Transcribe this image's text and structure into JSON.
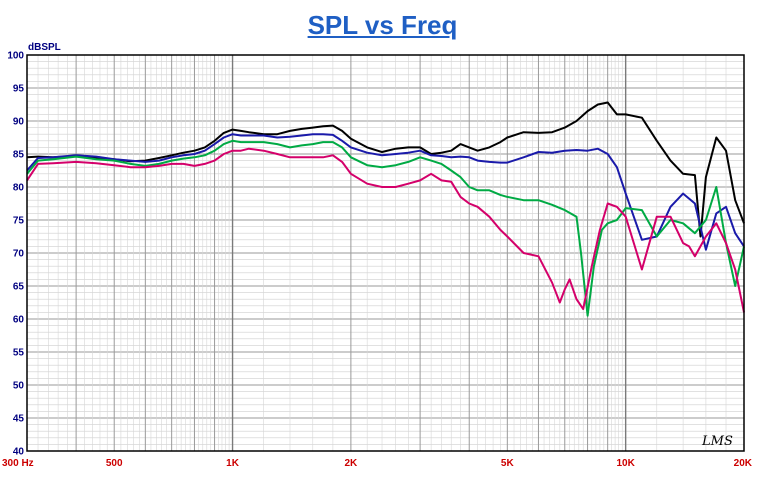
{
  "chart_data": {
    "type": "line",
    "title": "SPL vs Freq",
    "ylabel": "dBSPL",
    "xscale": "log",
    "xlim": [
      300,
      20000
    ],
    "ylim": [
      40,
      100
    ],
    "grid": true,
    "x_tick_labels": [
      {
        "value": 300,
        "label": "300  Hz"
      },
      {
        "value": 500,
        "label": "500"
      },
      {
        "value": 1000,
        "label": "1K"
      },
      {
        "value": 2000,
        "label": "2K"
      },
      {
        "value": 5000,
        "label": "5K"
      },
      {
        "value": 10000,
        "label": "10K"
      },
      {
        "value": 20000,
        "label": "20K"
      }
    ],
    "y_tick_labels": [
      "40",
      "45",
      "50",
      "55",
      "60",
      "65",
      "70",
      "75",
      "80",
      "85",
      "90",
      "95",
      "100"
    ],
    "watermark": "LMS",
    "colors": {
      "black": "#000000",
      "blue": "#1a1aaa",
      "green": "#00aa44",
      "magenta": "#d4006a",
      "title": "#1f5fc4"
    },
    "series": [
      {
        "color": "#000000",
        "x": [
          300,
          320,
          350,
          400,
          450,
          500,
          550,
          600,
          650,
          700,
          750,
          800,
          850,
          900,
          950,
          1000,
          1050,
          1100,
          1200,
          1300,
          1400,
          1500,
          1600,
          1700,
          1800,
          1900,
          2000,
          2200,
          2400,
          2600,
          2800,
          3000,
          3200,
          3400,
          3600,
          3800,
          4000,
          4200,
          4500,
          4800,
          5000,
          5500,
          6000,
          6500,
          7000,
          7500,
          8000,
          8500,
          9000,
          9500,
          10000,
          11000,
          12000,
          13000,
          14000,
          15000,
          15500,
          16000,
          17000,
          18000,
          19000,
          20000
        ],
        "y": [
          84.5,
          84.6,
          84.5,
          84.7,
          84.4,
          84.2,
          83.9,
          84.0,
          84.4,
          84.8,
          85.2,
          85.5,
          86.0,
          87.0,
          88.2,
          88.7,
          88.5,
          88.3,
          88.0,
          88.0,
          88.5,
          88.8,
          89.0,
          89.2,
          89.3,
          88.5,
          87.3,
          86.0,
          85.3,
          85.8,
          86.0,
          86.0,
          85.0,
          85.2,
          85.5,
          86.5,
          86.0,
          85.5,
          86.0,
          86.8,
          87.5,
          88.3,
          88.2,
          88.3,
          89.0,
          90.0,
          91.5,
          92.5,
          92.8,
          91.0,
          91.0,
          90.5,
          87.0,
          84.0,
          82.0,
          81.8,
          72.5,
          81.5,
          87.5,
          85.5,
          78.0,
          74.5
        ]
      },
      {
        "color": "#1a1aaa",
        "x": [
          300,
          320,
          350,
          400,
          450,
          500,
          550,
          600,
          650,
          700,
          750,
          800,
          850,
          900,
          950,
          1000,
          1050,
          1100,
          1200,
          1300,
          1400,
          1500,
          1600,
          1700,
          1800,
          1900,
          2000,
          2200,
          2400,
          2600,
          2800,
          3000,
          3200,
          3400,
          3600,
          3800,
          4000,
          4200,
          4500,
          4800,
          5000,
          5500,
          6000,
          6500,
          7000,
          7500,
          8000,
          8500,
          9000,
          9500,
          10000,
          11000,
          12000,
          13000,
          14000,
          15000,
          16000,
          17000,
          18000,
          19000,
          20000
        ],
        "y": [
          82.5,
          84.4,
          84.5,
          84.8,
          84.6,
          84.2,
          84.0,
          83.8,
          84.0,
          84.5,
          84.8,
          85.0,
          85.5,
          86.5,
          87.5,
          88.0,
          87.8,
          87.8,
          87.8,
          87.5,
          87.6,
          87.8,
          88.0,
          88.0,
          87.9,
          87.0,
          86.0,
          85.2,
          84.8,
          85.0,
          85.2,
          85.5,
          84.8,
          84.7,
          84.5,
          84.6,
          84.5,
          84.0,
          83.8,
          83.7,
          83.7,
          84.5,
          85.3,
          85.2,
          85.5,
          85.6,
          85.5,
          85.8,
          85.0,
          83.0,
          79.0,
          72.0,
          72.5,
          77.0,
          79.0,
          77.5,
          70.5,
          76.0,
          77.0,
          73.0,
          71.0
        ]
      },
      {
        "color": "#00aa44",
        "x": [
          300,
          320,
          350,
          400,
          450,
          500,
          550,
          600,
          650,
          700,
          750,
          800,
          850,
          900,
          950,
          1000,
          1050,
          1100,
          1200,
          1300,
          1400,
          1500,
          1600,
          1700,
          1800,
          1900,
          2000,
          2200,
          2400,
          2600,
          2800,
          3000,
          3200,
          3400,
          3600,
          3800,
          4000,
          4200,
          4500,
          4800,
          5000,
          5500,
          6000,
          6500,
          7000,
          7500,
          7700,
          8000,
          8300,
          8700,
          9000,
          9500,
          10000,
          11000,
          12000,
          13000,
          14000,
          15000,
          16000,
          17000,
          18000,
          19000,
          20000
        ],
        "y": [
          82.0,
          84.0,
          84.2,
          84.6,
          84.2,
          84.0,
          83.5,
          83.2,
          83.5,
          84.0,
          84.3,
          84.5,
          84.8,
          85.5,
          86.5,
          87.0,
          86.8,
          86.8,
          86.8,
          86.5,
          86.0,
          86.3,
          86.5,
          86.8,
          86.8,
          86.0,
          84.5,
          83.3,
          83.0,
          83.3,
          83.8,
          84.5,
          84.0,
          83.5,
          82.5,
          81.5,
          80.0,
          79.5,
          79.5,
          78.8,
          78.5,
          78.0,
          78.0,
          77.3,
          76.5,
          75.5,
          70.0,
          60.5,
          68.0,
          73.5,
          74.5,
          75.0,
          76.8,
          76.5,
          72.5,
          75.0,
          74.5,
          73.0,
          75.0,
          80.0,
          71.5,
          65.0,
          71.0
        ]
      },
      {
        "color": "#d4006a",
        "x": [
          300,
          320,
          350,
          400,
          450,
          500,
          550,
          600,
          650,
          700,
          750,
          800,
          850,
          900,
          950,
          1000,
          1050,
          1100,
          1200,
          1300,
          1400,
          1500,
          1600,
          1700,
          1800,
          1900,
          2000,
          2200,
          2400,
          2600,
          2800,
          3000,
          3200,
          3400,
          3600,
          3800,
          4000,
          4200,
          4500,
          4800,
          5000,
          5500,
          6000,
          6500,
          6800,
          7000,
          7200,
          7500,
          7800,
          8200,
          8600,
          9000,
          9500,
          10000,
          11000,
          12000,
          13000,
          14000,
          14500,
          15000,
          16000,
          17000,
          18000,
          19000,
          20000
        ],
        "y": [
          81.0,
          83.5,
          83.6,
          83.8,
          83.6,
          83.3,
          83.0,
          83.0,
          83.2,
          83.5,
          83.5,
          83.2,
          83.5,
          84.0,
          85.0,
          85.5,
          85.5,
          85.8,
          85.5,
          85.0,
          84.5,
          84.5,
          84.5,
          84.5,
          84.8,
          83.8,
          82.0,
          80.5,
          80.0,
          80.0,
          80.5,
          81.0,
          82.0,
          81.0,
          80.8,
          78.5,
          77.5,
          77.0,
          75.5,
          73.5,
          72.5,
          70.0,
          69.5,
          65.5,
          62.5,
          64.5,
          66.0,
          63.0,
          61.5,
          68.0,
          73.5,
          77.5,
          77.0,
          75.5,
          67.5,
          75.5,
          75.5,
          71.5,
          71.0,
          69.5,
          72.5,
          74.5,
          71.5,
          67.5,
          61.0
        ]
      }
    ]
  }
}
